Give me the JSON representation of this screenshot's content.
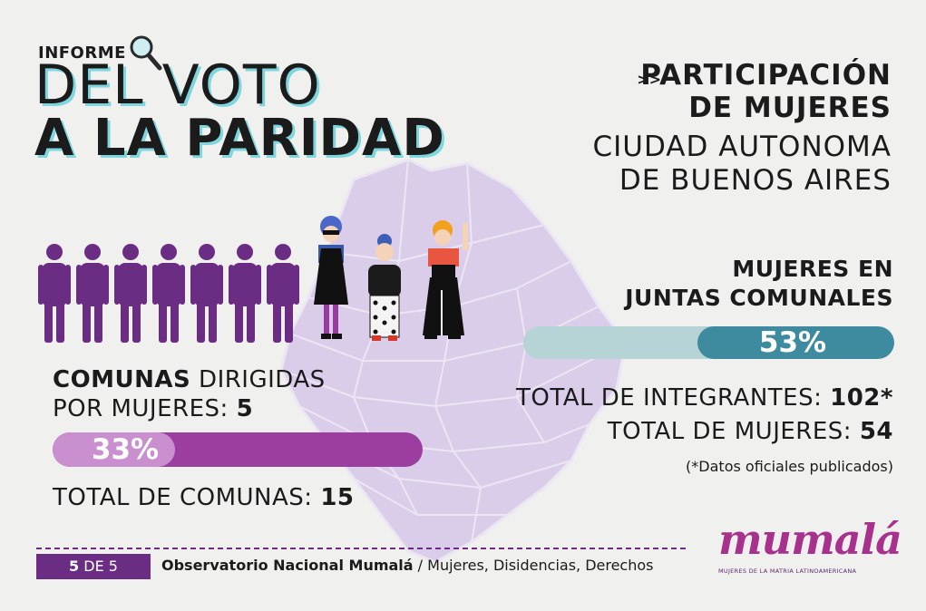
{
  "header": {
    "kicker": "INFORME",
    "title_line1": "DEL VOTO",
    "title_line2": "A LA PARIDAD"
  },
  "right_heading": {
    "arrow": ">>",
    "line1": "PARTICIPACIÓN",
    "line2": "DE MUJERES",
    "line3": "CIUDAD AUTONOMA",
    "line4": "DE BUENOS AIRES"
  },
  "juntas": {
    "title_line1": "MUJERES EN",
    "title_line2": "JUNTAS COMUNALES",
    "percent_label": "53%",
    "percent_value": 0.53,
    "total_integrantes_label": "TOTAL DE INTEGRANTES: ",
    "total_integrantes_value": "102*",
    "total_mujeres_label": "TOTAL DE MUJERES: ",
    "total_mujeres_value": "54",
    "footnote": "(*Datos oficiales publicados)"
  },
  "comunas": {
    "label_bold": "COMUNAS",
    "label_rest": " DIRIGIDAS",
    "label_line2": "POR MUJERES: ",
    "count": "5",
    "percent_label": "33%",
    "percent_value": 0.33,
    "total_label": "TOTAL DE COMUNAS: ",
    "total_value": "15"
  },
  "figures": {
    "men_count": 7,
    "women_count": 3
  },
  "footer": {
    "page_current": "5",
    "page_sep": " DE ",
    "page_total": "5",
    "org_bold": "Observatorio Nacional Mumalá",
    "org_rest": " / Mujeres, Disidencias, Derechos"
  },
  "logo": {
    "word": "mumalá",
    "subtitle": "MUJERES DE LA MATRIA LATINOAMERICANA"
  },
  "colors": {
    "purple": "#6b2d83",
    "teal": "#3e8ba0",
    "map": "#d9cdea",
    "brand": "#a7318c"
  }
}
